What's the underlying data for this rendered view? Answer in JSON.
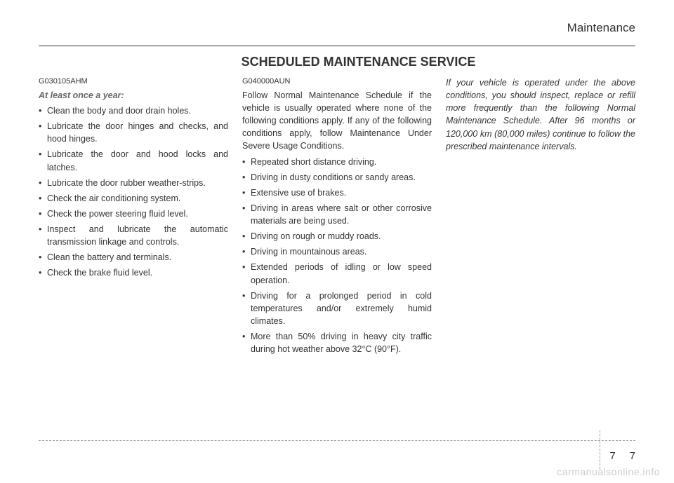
{
  "header": {
    "section_title": "Maintenance"
  },
  "title": "SCHEDULED MAINTENANCE SERVICE",
  "col1": {
    "code": "G030105AHM",
    "subheading": "At least once a year:",
    "bullets": [
      "Clean the body and door drain holes.",
      "Lubricate the door hinges and checks, and hood hinges.",
      "Lubricate the door and hood locks and latches.",
      "Lubricate the door rubber weather-strips.",
      "Check the air conditioning system.",
      "Check the power steering fluid level.",
      "Inspect and lubricate the automatic transmission linkage and controls.",
      "Clean the battery and terminals.",
      "Check the brake fluid level."
    ]
  },
  "col2": {
    "code": "G040000AUN",
    "intro": "Follow Normal Maintenance Schedule if the vehicle is usually operated where none of the following conditions apply. If any of the following conditions apply, follow Maintenance Under Severe Usage Conditions.",
    "bullets": [
      "Repeated short distance driving.",
      "Driving in dusty conditions or sandy areas.",
      "Extensive use of brakes.",
      "Driving in areas where salt or other corrosive materials are being used.",
      "Driving on rough or muddy roads.",
      "Driving in mountainous areas.",
      "Extended periods of idling or low speed operation.",
      "Driving for a prolonged period in cold temperatures and/or extremely humid climates.",
      "More than 50% driving in heavy city traffic during hot weather above 32°C (90°F)."
    ]
  },
  "col3": {
    "italic_text": "If your vehicle is operated under the above conditions, you should inspect, replace or refill more frequently than the following Normal Maintenance Schedule. After 96 months or 120,000 km (80,000 miles) continue to follow the prescribed maintenance intervals."
  },
  "footer": {
    "page_left": "7",
    "page_right": "7",
    "watermark": "carmanualsonline.info"
  }
}
